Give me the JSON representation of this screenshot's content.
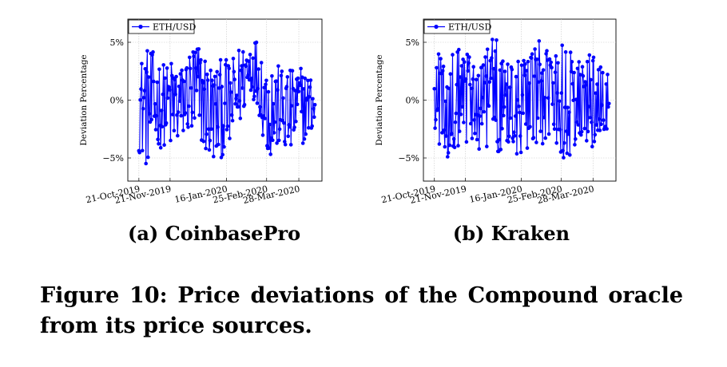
{
  "figure": {
    "caption": "Figure 10: Price deviations of the Compound oracle from its price sources.",
    "subcaptions": [
      "(a) CoinbasePro",
      "(b) Kraken"
    ]
  },
  "chart_data": [
    {
      "type": "line",
      "title": "",
      "xlabel": "",
      "ylabel": "Deviation Percentage",
      "xlim": [
        "2019-10-10",
        "2020-04-20"
      ],
      "ylim": [
        -7,
        7
      ],
      "x_ticks": [
        "21-Oct-2019",
        "21-Nov-2019",
        "16-Jan-2020",
        "25-Feb-2020",
        "28-Mar-2020"
      ],
      "y_ticks": [
        "5%",
        "0%",
        "−5%"
      ],
      "y_tick_values": [
        5,
        0,
        -5
      ],
      "grid": true,
      "legend_position": "top-left",
      "series": [
        {
          "name": "ETH/USD",
          "color": "#0000ff",
          "marker": "circle",
          "x": [
            "2019-10-21",
            "2019-10-28",
            "2019-11-04",
            "2019-11-11",
            "2019-11-18",
            "2019-11-25",
            "2019-12-02",
            "2019-12-09",
            "2019-12-16",
            "2019-12-23",
            "2019-12-30",
            "2020-01-06",
            "2020-01-13",
            "2020-01-20",
            "2020-01-27",
            "2020-02-03",
            "2020-02-10",
            "2020-02-17",
            "2020-02-24",
            "2020-03-02",
            "2020-03-09",
            "2020-03-16",
            "2020-03-23",
            "2020-03-30",
            "2020-04-06",
            "2020-04-13"
          ],
          "min": [
            -4.5,
            -5.8,
            -4.8,
            -4.2,
            -3.8,
            -5.2,
            -3.5,
            -3.0,
            -5.0,
            -4.0,
            -5.6,
            -5.4,
            -4.8,
            -4.4,
            -3.0,
            -1.0,
            0.5,
            -1.0,
            -4.5,
            -5.5,
            -3.8,
            -5.5,
            -4.2,
            -4.0,
            -3.2,
            -2.8
          ],
          "max": [
            3.2,
            4.6,
            4.2,
            3.5,
            3.0,
            4.0,
            2.8,
            4.2,
            5.5,
            4.5,
            3.5,
            3.0,
            3.8,
            3.2,
            4.5,
            5.0,
            5.8,
            5.2,
            3.5,
            3.8,
            2.8,
            3.0,
            2.5,
            3.0,
            2.2,
            2.0
          ]
        }
      ]
    },
    {
      "type": "line",
      "title": "",
      "xlabel": "",
      "ylabel": "Deviation Percentage",
      "xlim": [
        "2019-10-10",
        "2020-04-20"
      ],
      "ylim": [
        -7,
        7
      ],
      "x_ticks": [
        "21-Oct-2019",
        "21-Nov-2019",
        "16-Jan-2020",
        "25-Feb-2020",
        "28-Mar-2020"
      ],
      "y_ticks": [
        "5%",
        "0%",
        "−5%"
      ],
      "y_tick_values": [
        5,
        0,
        -5
      ],
      "grid": true,
      "legend_position": "top-left",
      "series": [
        {
          "name": "ETH/USD",
          "color": "#0000ff",
          "marker": "circle",
          "x": [
            "2019-10-21",
            "2019-10-28",
            "2019-11-04",
            "2019-11-11",
            "2019-11-18",
            "2019-11-25",
            "2019-12-02",
            "2019-12-09",
            "2019-12-16",
            "2019-12-23",
            "2019-12-30",
            "2020-01-06",
            "2020-01-13",
            "2020-01-20",
            "2020-01-27",
            "2020-02-03",
            "2020-02-10",
            "2020-02-17",
            "2020-02-24",
            "2020-03-02",
            "2020-03-09",
            "2020-03-16",
            "2020-03-23",
            "2020-03-30",
            "2020-04-06",
            "2020-04-13"
          ],
          "min": [
            -4.0,
            -5.8,
            -5.5,
            -4.5,
            -5.0,
            -3.8,
            -4.2,
            -5.0,
            -3.5,
            -4.8,
            -4.0,
            -3.6,
            -5.2,
            -4.6,
            -3.8,
            -4.4,
            -5.0,
            -3.6,
            -4.8,
            -5.5,
            -4.2,
            -3.8,
            -5.0,
            -4.6,
            -3.2,
            -3.0
          ],
          "max": [
            4.5,
            5.2,
            5.5,
            4.2,
            4.8,
            4.0,
            3.6,
            5.0,
            5.8,
            5.6,
            4.2,
            3.8,
            4.6,
            3.4,
            4.0,
            5.2,
            4.4,
            3.6,
            4.5,
            5.4,
            3.8,
            3.5,
            4.2,
            3.6,
            2.8,
            2.4
          ]
        }
      ]
    }
  ]
}
